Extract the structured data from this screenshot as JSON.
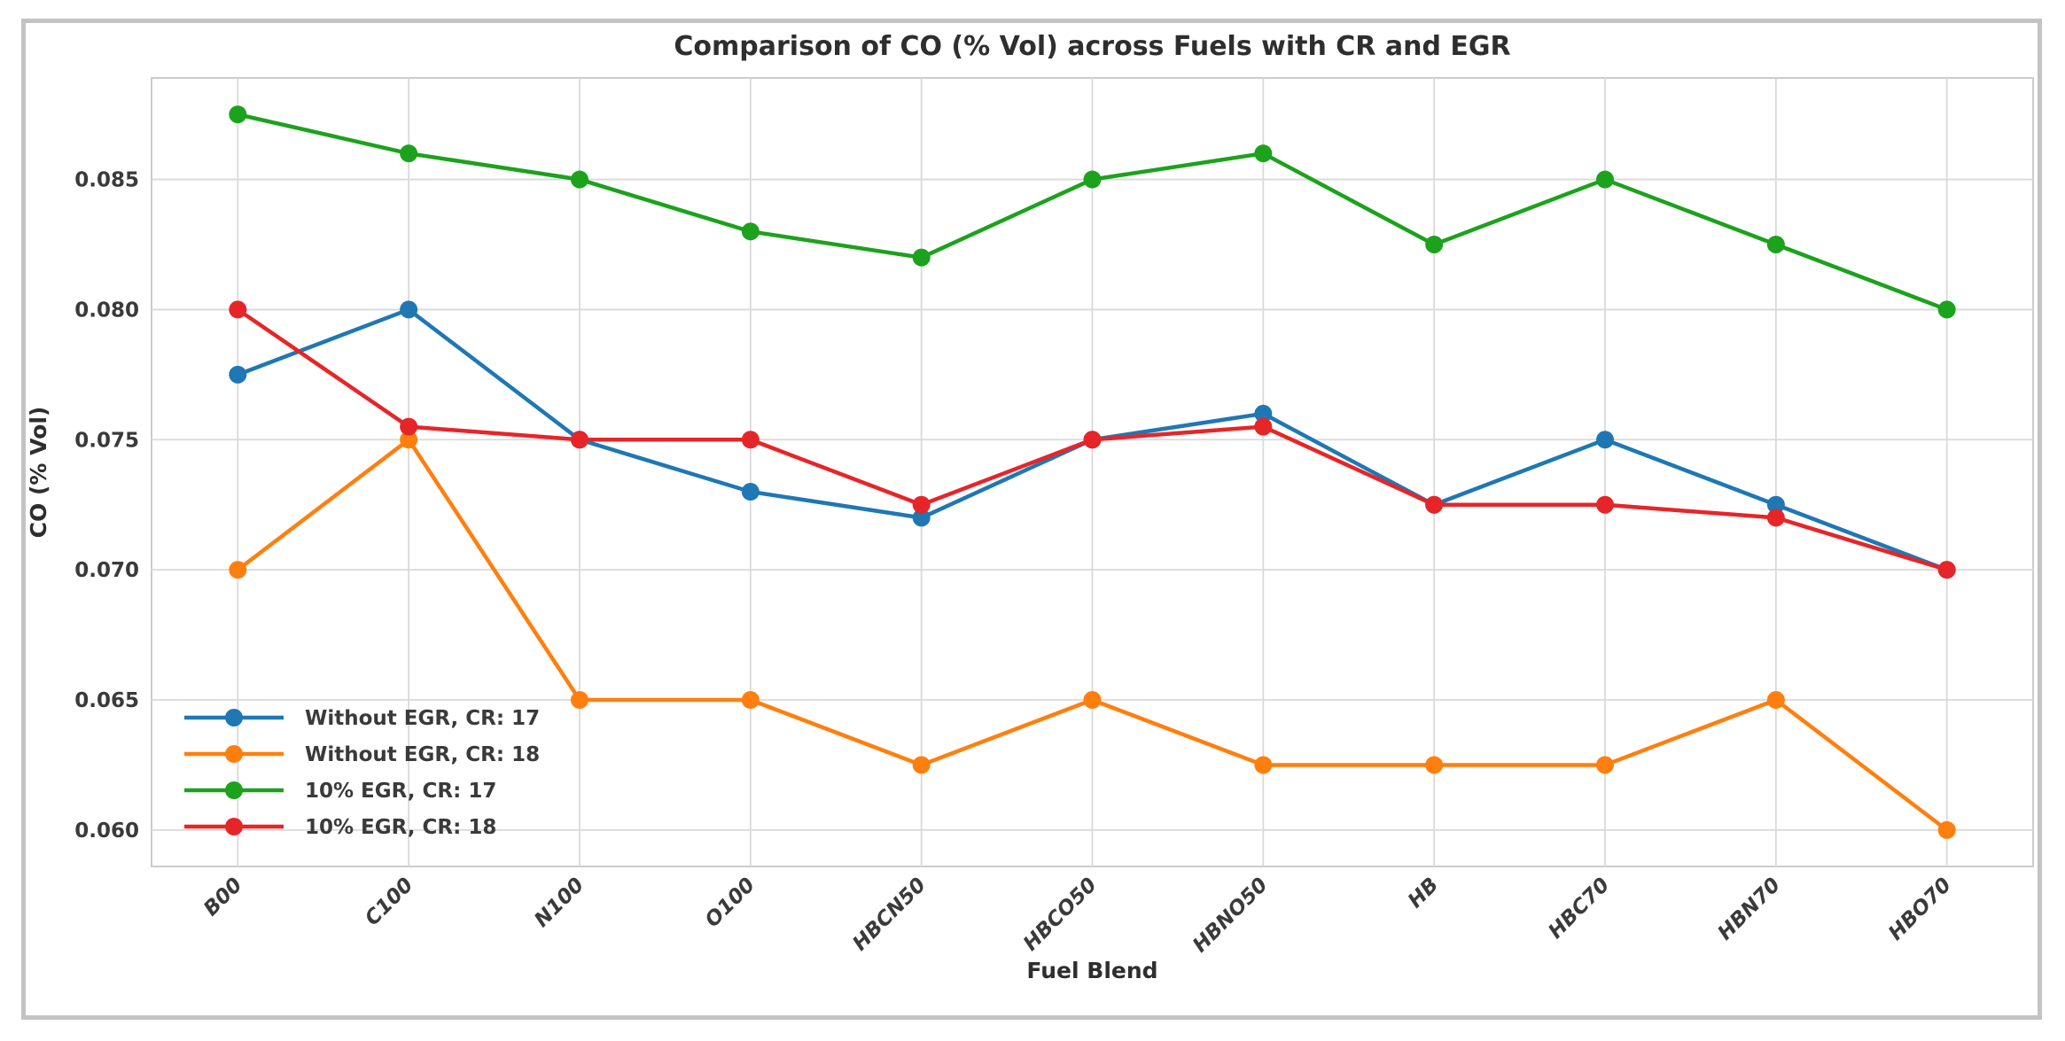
{
  "figure": {
    "title": "Comparison of CO (% Vol) across Fuels with CR and EGR",
    "xlabel": "Fuel Blend",
    "ylabel": "CO (% Vol)"
  },
  "chart_data": {
    "type": "line",
    "title": "Comparison of CO (% Vol) across Fuels with CR and EGR",
    "xlabel": "Fuel Blend",
    "ylabel": "CO (% Vol)",
    "categories": [
      "B00",
      "C100",
      "N100",
      "O100",
      "HBCN50",
      "HBCO50",
      "HBNO50",
      "HB",
      "HBC70",
      "HBN70",
      "HBO70"
    ],
    "series": [
      {
        "name": "Without EGR, CR: 17",
        "color": "#1f77b4",
        "values": [
          0.0775,
          0.08,
          0.075,
          0.073,
          0.072,
          0.075,
          0.076,
          0.0725,
          0.075,
          0.0725,
          0.07
        ]
      },
      {
        "name": "Without EGR, CR: 18",
        "color": "#ff7f0e",
        "values": [
          0.07,
          0.075,
          0.065,
          0.065,
          0.0625,
          0.065,
          0.0625,
          0.0625,
          0.0625,
          0.065,
          0.06
        ]
      },
      {
        "name": "10% EGR, CR: 17",
        "color": "#1ca21c",
        "values": [
          0.0875,
          0.086,
          0.085,
          0.083,
          0.082,
          0.085,
          0.086,
          0.0825,
          0.085,
          0.0825,
          0.08
        ]
      },
      {
        "name": "10% EGR, CR: 18",
        "color": "#e62529",
        "values": [
          0.08,
          0.0755,
          0.075,
          0.075,
          0.0725,
          0.075,
          0.0755,
          0.0725,
          0.0725,
          0.072,
          0.07
        ]
      }
    ],
    "yticks": [
      "0.060",
      "0.065",
      "0.070",
      "0.075",
      "0.080",
      "0.085"
    ],
    "ylim": [
      0.0586,
      0.0889
    ],
    "grid": true,
    "gridline_color": "#d9d9d9",
    "axes_border_color": "#cccccc",
    "legend_position": "lower left",
    "marker": "circle"
  }
}
